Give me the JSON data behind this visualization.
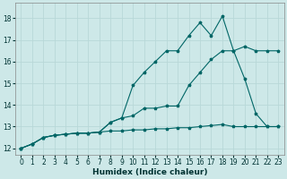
{
  "xlabel": "Humidex (Indice chaleur)",
  "xlim": [
    -0.5,
    23.5
  ],
  "ylim": [
    11.7,
    18.7
  ],
  "yticks": [
    12,
    13,
    14,
    15,
    16,
    17,
    18
  ],
  "xticks": [
    0,
    1,
    2,
    3,
    4,
    5,
    6,
    7,
    8,
    9,
    10,
    11,
    12,
    13,
    14,
    15,
    16,
    17,
    18,
    19,
    20,
    21,
    22,
    23
  ],
  "bg_color": "#cde8e8",
  "grid_color": "#b8d8d8",
  "line_color": "#006666",
  "line1_x": [
    0,
    1,
    2,
    3,
    4,
    5,
    6,
    7,
    8,
    9,
    10,
    11,
    12,
    13,
    14,
    15,
    16,
    17,
    18,
    19,
    20,
    21,
    22,
    23
  ],
  "line1_y": [
    12.0,
    12.2,
    12.5,
    12.6,
    12.65,
    12.7,
    12.7,
    12.75,
    12.8,
    12.8,
    12.85,
    12.85,
    12.9,
    12.9,
    12.95,
    12.95,
    13.0,
    13.05,
    13.1,
    13.0,
    13.0,
    13.0,
    13.0,
    13.0
  ],
  "line2_x": [
    0,
    1,
    2,
    3,
    4,
    5,
    6,
    7,
    8,
    9,
    10,
    11,
    12,
    13,
    14,
    15,
    16,
    17,
    18,
    19,
    20,
    21,
    22,
    23
  ],
  "line2_y": [
    12.0,
    12.2,
    12.5,
    12.6,
    12.65,
    12.7,
    12.7,
    12.75,
    13.2,
    13.4,
    13.5,
    13.85,
    13.85,
    13.95,
    13.95,
    14.9,
    15.5,
    16.1,
    16.5,
    16.5,
    16.7,
    16.5,
    16.5,
    16.5
  ],
  "line3_x": [
    0,
    1,
    2,
    3,
    4,
    5,
    6,
    7,
    8,
    9,
    10,
    11,
    12,
    13,
    14,
    15,
    16,
    17,
    18,
    19,
    20,
    21,
    22,
    23
  ],
  "line3_y": [
    12.0,
    12.2,
    12.5,
    12.6,
    12.65,
    12.7,
    12.7,
    12.75,
    13.2,
    13.4,
    14.9,
    15.5,
    16.0,
    16.5,
    16.5,
    17.2,
    17.8,
    17.2,
    18.1,
    16.5,
    15.2,
    13.6,
    13.0,
    13.0
  ]
}
